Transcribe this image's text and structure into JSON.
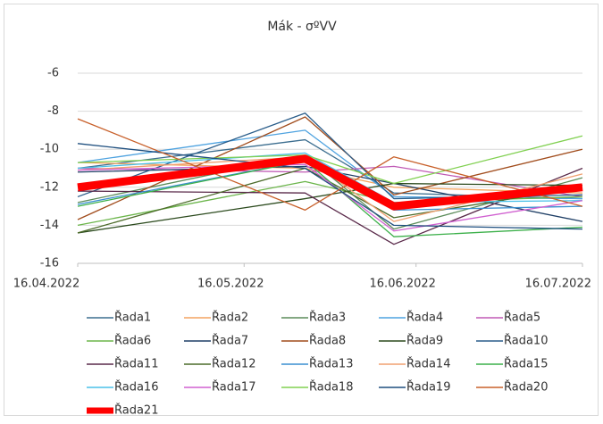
{
  "chart_data": {
    "type": "line",
    "title": "Mák - σºVV",
    "x": [
      "16.04.2022",
      "27.05.2022",
      "12.06.2022",
      "16.07.2022"
    ],
    "xlim": [
      "16.04.2022",
      "16.07.2022"
    ],
    "xticks": [
      "16.04.2022",
      "16.05.2022",
      "16.06.2022",
      "16.07.2022"
    ],
    "ylim": [
      -16,
      -6
    ],
    "yticks": [
      -16,
      -14,
      -12,
      -10,
      -8,
      -6
    ],
    "grid": true,
    "series": [
      {
        "name": "Řada1",
        "color": "#3c6e8f",
        "values": [
          -11,
          -9.5,
          -12.3,
          -12.6
        ]
      },
      {
        "name": "Řada2",
        "color": "#f4a460",
        "values": [
          -10.7,
          -11,
          -12,
          -12.3
        ]
      },
      {
        "name": "Řada3",
        "color": "#5b8c5a",
        "values": [
          -12.8,
          -10.3,
          -14.2,
          -11.5
        ]
      },
      {
        "name": "Řada4",
        "color": "#4fa3e0",
        "values": [
          -10.7,
          -9,
          -12.5,
          -12.6
        ]
      },
      {
        "name": "Řada5",
        "color": "#c05ab5",
        "values": [
          -11,
          -11.2,
          -10.9,
          -12.5
        ]
      },
      {
        "name": "Řada6",
        "color": "#6bb54a",
        "values": [
          -14,
          -11.7,
          -12.8,
          -12.5
        ]
      },
      {
        "name": "Řada7",
        "color": "#1f3f66",
        "values": [
          -11.2,
          -10.9,
          -11.8,
          -13.8
        ]
      },
      {
        "name": "Řada8",
        "color": "#a14c1c",
        "values": [
          -13.7,
          -8.3,
          -12.4,
          -10
        ]
      },
      {
        "name": "Řada9",
        "color": "#2b4a1d",
        "values": [
          -14.4,
          -12.6,
          -11.8,
          -11.9
        ]
      },
      {
        "name": "Řada10",
        "color": "#2a5d8a",
        "values": [
          -12.5,
          -8.1,
          -12.6,
          -12.4
        ]
      },
      {
        "name": "Řada11",
        "color": "#5a2a4a",
        "values": [
          -12.2,
          -12.3,
          -15,
          -11
        ]
      },
      {
        "name": "Řada12",
        "color": "#4c6b2a",
        "values": [
          -14.4,
          -11,
          -13.6,
          -12
        ]
      },
      {
        "name": "Řada13",
        "color": "#3a8fd0",
        "values": [
          -12.9,
          -10.6,
          -13.2,
          -13
        ]
      },
      {
        "name": "Řada14",
        "color": "#f0a070",
        "values": [
          -11.1,
          -10.4,
          -13.8,
          -11.3
        ]
      },
      {
        "name": "Řada15",
        "color": "#3cb04a",
        "values": [
          -13,
          -10.6,
          -14.6,
          -14.1
        ]
      },
      {
        "name": "Řada16",
        "color": "#4ac0e8",
        "values": [
          -11,
          -10.2,
          -12.8,
          -12.7
        ]
      },
      {
        "name": "Řada17",
        "color": "#d060d0",
        "values": [
          -11.1,
          -10.8,
          -14.3,
          -12.7
        ]
      },
      {
        "name": "Řada18",
        "color": "#80d050",
        "values": [
          -10.7,
          -10.3,
          -11.8,
          -9.3
        ]
      },
      {
        "name": "Řada19",
        "color": "#1f4f7f",
        "values": [
          -9.7,
          -11,
          -14,
          -14.2
        ]
      },
      {
        "name": "Řada20",
        "color": "#c8602a",
        "values": [
          -8.4,
          -13.2,
          -10.4,
          -13
        ]
      },
      {
        "name": "Řada21",
        "color": "#ff0000",
        "values": [
          -12,
          -10.5,
          -13,
          -12
        ]
      }
    ]
  }
}
